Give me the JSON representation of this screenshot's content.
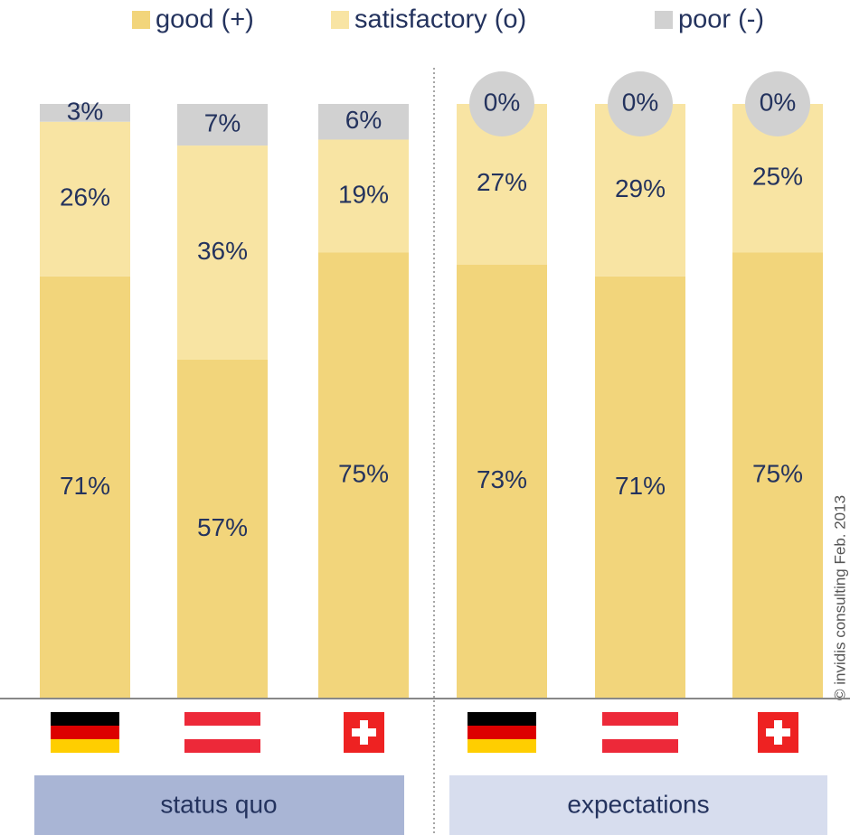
{
  "chart_data": {
    "type": "stacked_bar",
    "categories": [
      null,
      null,
      null,
      null,
      null,
      null
    ],
    "groups": [
      "status quo",
      "expectations"
    ],
    "series": [
      {
        "name": "good (+)",
        "color": "#f2d57b",
        "values": [
          71,
          57,
          75,
          73,
          71,
          75
        ],
        "value_labels": [
          "71%",
          "57%",
          "75%",
          "73%",
          "71%",
          "75%"
        ]
      },
      {
        "name": "satisfactory (o)",
        "color": "#f8e4a3",
        "values": [
          26,
          36,
          19,
          27,
          29,
          25
        ],
        "value_labels": [
          "26%",
          "36%",
          "19%",
          "27%",
          "29%",
          "25%"
        ]
      },
      {
        "name": "poor (-)",
        "color": "#d1d1d1",
        "values": [
          3,
          7,
          6,
          0,
          0,
          0
        ],
        "value_labels": [
          "3%",
          "7%",
          "6%",
          "0%",
          "0%",
          "0%"
        ]
      }
    ],
    "ylim": [
      0,
      100
    ],
    "footnote": "© invidis consulting Feb. 2013"
  }
}
